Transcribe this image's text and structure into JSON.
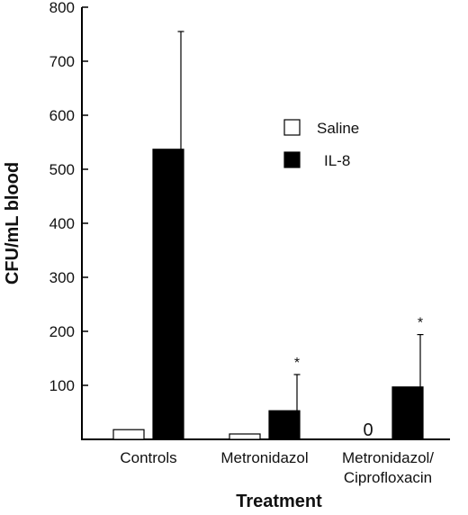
{
  "chart_data": {
    "type": "bar",
    "categories": [
      "Controls",
      "Metronidazol",
      "Metronidazol/\nCiprofloxacin"
    ],
    "series": [
      {
        "name": "Saline",
        "values": [
          18,
          10,
          0
        ],
        "errors": [
          0,
          0,
          0
        ],
        "color": "#ffffff"
      },
      {
        "name": "IL-8",
        "values": [
          537,
          53,
          97
        ],
        "errors": [
          218,
          67,
          97
        ],
        "color": "#000000"
      }
    ],
    "ylabel": "CFU/mL blood",
    "xlabel": "Treatment",
    "ylim": [
      0,
      800
    ],
    "yticks": [
      100,
      200,
      300,
      400,
      500,
      600,
      700,
      800
    ],
    "annotations": [
      {
        "category_index": 1,
        "series_index": 1,
        "text": "*"
      },
      {
        "category_index": 2,
        "series_index": 1,
        "text": "*"
      }
    ],
    "zero_value_labels": [
      {
        "category_index": 2,
        "series_index": 0,
        "text": "0"
      }
    ],
    "legend_position": "top-right",
    "grid": false
  }
}
